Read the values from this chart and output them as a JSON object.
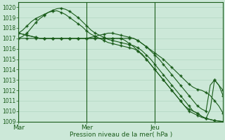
{
  "title": "Pression niveau de la mer( hPa )",
  "bg_color": "#cce8d8",
  "grid_color": "#aacfba",
  "line_color": "#1a5c1a",
  "ylim": [
    1009,
    1020.5
  ],
  "yticks": [
    1009,
    1010,
    1011,
    1012,
    1013,
    1014,
    1015,
    1016,
    1017,
    1018,
    1019,
    1020
  ],
  "xtick_labels": [
    "Mar",
    "Mer",
    "Jeu"
  ],
  "xtick_pos": [
    0,
    16,
    32
  ],
  "vlines": [
    0,
    16,
    32
  ],
  "num_points": 49,
  "series": [
    [
      1017.5,
      1017.8,
      1018.2,
      1018.6,
      1018.9,
      1019.1,
      1019.3,
      1019.5,
      1019.6,
      1019.65,
      1019.5,
      1019.3,
      1019.0,
      1018.7,
      1018.4,
      1018.1,
      1017.7,
      1017.4,
      1017.2,
      1017.0,
      1016.8,
      1016.6,
      1016.5,
      1016.4,
      1016.3,
      1016.2,
      1016.1,
      1016.0,
      1015.8,
      1015.5,
      1015.0,
      1014.5,
      1014.0,
      1013.5,
      1013.0,
      1012.5,
      1012.0,
      1011.5,
      1011.0,
      1010.5,
      1010.0,
      1009.8,
      1009.6,
      1009.4,
      1009.3,
      1009.2,
      1009.1,
      1009.05,
      1009.0
    ],
    [
      1017.0,
      1017.2,
      1017.5,
      1018.0,
      1018.5,
      1018.9,
      1019.2,
      1019.5,
      1019.7,
      1019.85,
      1019.9,
      1019.8,
      1019.6,
      1019.3,
      1019.0,
      1018.6,
      1018.2,
      1017.8,
      1017.5,
      1017.3,
      1017.1,
      1016.9,
      1016.8,
      1016.7,
      1016.6,
      1016.5,
      1016.4,
      1016.3,
      1016.1,
      1015.8,
      1015.4,
      1015.0,
      1014.5,
      1014.0,
      1013.5,
      1013.0,
      1012.5,
      1012.0,
      1011.5,
      1011.0,
      1010.5,
      1010.0,
      1009.8,
      1009.5,
      1009.3,
      1009.2,
      1009.1,
      1009.05,
      1009.0
    ],
    [
      1017.5,
      1017.4,
      1017.3,
      1017.2,
      1017.1,
      1017.0,
      1017.0,
      1017.0,
      1017.0,
      1017.0,
      1017.0,
      1017.0,
      1017.0,
      1017.0,
      1017.0,
      1017.0,
      1017.0,
      1017.1,
      1017.2,
      1017.3,
      1017.4,
      1017.5,
      1017.5,
      1017.4,
      1017.3,
      1017.2,
      1017.1,
      1017.0,
      1016.8,
      1016.5,
      1016.2,
      1015.9,
      1015.6,
      1015.3,
      1015.0,
      1014.6,
      1014.2,
      1013.8,
      1013.4,
      1013.0,
      1012.6,
      1012.3,
      1012.1,
      1012.0,
      1011.8,
      1011.5,
      1011.0,
      1010.5,
      1009.8
    ],
    [
      1017.0,
      1017.0,
      1017.0,
      1017.0,
      1017.0,
      1017.0,
      1017.0,
      1017.0,
      1017.0,
      1017.0,
      1017.0,
      1017.0,
      1017.0,
      1017.0,
      1017.0,
      1017.0,
      1017.0,
      1017.0,
      1017.0,
      1017.0,
      1017.0,
      1017.0,
      1017.0,
      1017.0,
      1017.0,
      1017.0,
      1017.0,
      1017.0,
      1016.8,
      1016.5,
      1016.2,
      1015.8,
      1015.4,
      1015.0,
      1014.5,
      1014.0,
      1013.5,
      1013.0,
      1012.5,
      1012.0,
      1011.5,
      1011.0,
      1010.5,
      1010.2,
      1010.0,
      1012.5,
      1013.0,
      1012.5,
      1012.0
    ],
    [
      1017.5,
      1017.4,
      1017.3,
      1017.2,
      1017.1,
      1017.0,
      1017.0,
      1017.0,
      1017.0,
      1017.0,
      1017.0,
      1017.0,
      1017.0,
      1017.0,
      1017.0,
      1017.0,
      1017.0,
      1017.0,
      1017.0,
      1017.0,
      1017.0,
      1017.0,
      1017.0,
      1017.0,
      1017.0,
      1016.8,
      1016.5,
      1016.2,
      1015.8,
      1015.4,
      1015.0,
      1014.5,
      1014.0,
      1013.5,
      1013.0,
      1012.5,
      1012.0,
      1011.5,
      1011.0,
      1010.5,
      1010.2,
      1010.0,
      1009.8,
      1009.5,
      1009.3,
      1010.2,
      1013.0,
      1012.5,
      1011.5
    ]
  ]
}
